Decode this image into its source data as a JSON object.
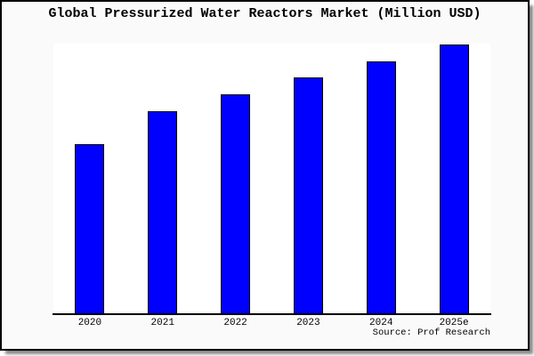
{
  "window": {
    "background": "#fafafa"
  },
  "header": {
    "title": "Global Pressurized Water Reactors Market (Million USD)"
  },
  "footer": {
    "source": "Source: Prof Research"
  },
  "colors": {
    "bar_fill": "#0000ff",
    "bar_border": "#000000",
    "axis_line": "#000000",
    "frame_border": "#000000",
    "frame_background": "#fafafa",
    "plot_background": "#ffffff",
    "text": "#000000",
    "shadow": "#8a8a8a"
  },
  "chart_data": {
    "type": "bar",
    "title": "Global Pressurized Water Reactors Market (Million USD)",
    "categories": [
      "2020",
      "2021",
      "2022",
      "2023",
      "2024",
      "2025e"
    ],
    "values": [
      190,
      227,
      246,
      265,
      283,
      302
    ],
    "values_unit": "relative units estimated from bar pixel heights; y-axis has no tick labels",
    "xlabel": "",
    "ylabel": "",
    "ylim": [
      0,
      303
    ],
    "grid": false,
    "legend": false,
    "bar_color": "#0000ff",
    "source_annotation": "Source: Prof Research"
  }
}
